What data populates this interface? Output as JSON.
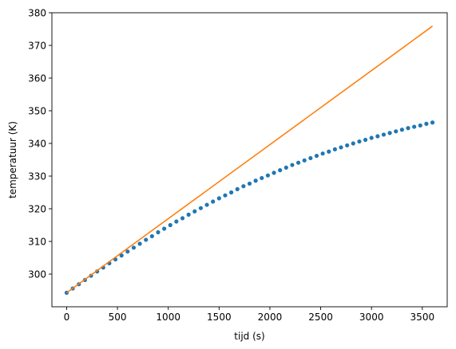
{
  "chart_data": {
    "type": "scatter",
    "xlabel": "tijd (s)",
    "ylabel": "temperatuur (K)",
    "xlim": [
      -145,
      3745
    ],
    "ylim": [
      290,
      380
    ],
    "xticks": [
      0,
      500,
      1000,
      1500,
      2000,
      2500,
      3000,
      3500
    ],
    "yticks": [
      300,
      310,
      320,
      330,
      340,
      350,
      360,
      370,
      380
    ],
    "grid": false,
    "colors": {
      "measured": "#1f77b4",
      "linear": "#ff7f0e"
    },
    "series": [
      {
        "kind": "markers",
        "color": "#1f77b4",
        "x": [
          0,
          60,
          120,
          180,
          240,
          300,
          360,
          420,
          480,
          540,
          600,
          660,
          720,
          780,
          840,
          900,
          960,
          1020,
          1080,
          1140,
          1200,
          1260,
          1320,
          1380,
          1440,
          1500,
          1560,
          1620,
          1680,
          1740,
          1800,
          1860,
          1920,
          1980,
          2040,
          2100,
          2160,
          2220,
          2280,
          2340,
          2400,
          2460,
          2520,
          2580,
          2640,
          2700,
          2760,
          2820,
          2880,
          2940,
          3000,
          3060,
          3120,
          3180,
          3240,
          3300,
          3360,
          3420,
          3480,
          3540,
          3600
        ],
        "y": [
          294.3,
          295.6,
          296.9,
          298.2,
          299.5,
          300.8,
          302.0,
          303.3,
          304.5,
          305.7,
          306.9,
          308.1,
          309.3,
          310.5,
          311.6,
          312.8,
          313.9,
          315.0,
          316.1,
          317.1,
          318.2,
          319.2,
          320.2,
          321.2,
          322.2,
          323.2,
          324.1,
          325.0,
          326.0,
          326.9,
          327.7,
          328.6,
          329.4,
          330.2,
          331.0,
          331.8,
          332.6,
          333.4,
          334.1,
          334.8,
          335.5,
          336.2,
          336.9,
          337.5,
          338.2,
          338.8,
          339.4,
          340.0,
          340.6,
          341.1,
          341.7,
          342.2,
          342.7,
          343.2,
          343.7,
          344.2,
          344.7,
          345.1,
          345.5,
          346.0,
          346.4
        ]
      },
      {
        "kind": "line",
        "color": "#ff7f0e",
        "x": [
          0,
          3600
        ],
        "y": [
          294.3,
          375.9
        ]
      }
    ]
  }
}
